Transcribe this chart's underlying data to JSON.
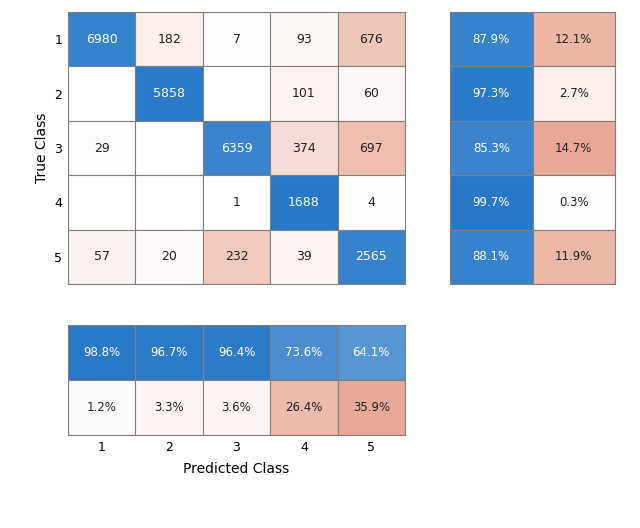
{
  "main_matrix": [
    [
      6980,
      182,
      7,
      93,
      676
    ],
    [
      0,
      5858,
      0,
      101,
      60
    ],
    [
      29,
      0,
      6359,
      374,
      697
    ],
    [
      0,
      0,
      1,
      1688,
      4
    ],
    [
      57,
      20,
      232,
      39,
      2565
    ]
  ],
  "main_labels": [
    [
      "6980",
      "182",
      "7",
      "93",
      "676"
    ],
    [
      "",
      "5858",
      "",
      "101",
      "60"
    ],
    [
      "29",
      "",
      "6359",
      "374",
      "697"
    ],
    [
      "",
      "",
      "1",
      "1688",
      "4"
    ],
    [
      "57",
      "20",
      "232",
      "39",
      "2565"
    ]
  ],
  "right_matrix_labels": [
    [
      "87.9%",
      "12.1%"
    ],
    [
      "97.3%",
      "2.7%"
    ],
    [
      "85.3%",
      "14.7%"
    ],
    [
      "99.7%",
      "0.3%"
    ],
    [
      "88.1%",
      "11.9%"
    ]
  ],
  "bottom_matrix_labels": [
    [
      "98.8%",
      "96.7%",
      "96.4%",
      "73.6%",
      "64.1%"
    ],
    [
      "1.2%",
      "3.3%",
      "3.6%",
      "26.4%",
      "35.9%"
    ]
  ],
  "true_class_labels": [
    "1",
    "2",
    "3",
    "4",
    "5"
  ],
  "predicted_class_labels": [
    "1",
    "2",
    "3",
    "4",
    "5"
  ],
  "xlabel": "Predicted Class",
  "ylabel": "True Class",
  "figsize": [
    6.4,
    5.28
  ],
  "dpi": 100,
  "color_blue_strong": "#2878C8",
  "color_blue_mid": "#5A9FD4",
  "color_blue_light": "#A8CBE8",
  "color_pink_light": "#F0D8D0",
  "color_pink_med": "#E8A898",
  "color_white": "#FFFFFF",
  "color_border": "#808080",
  "text_white": "#FFFFFF",
  "text_dark": "#222222",
  "font_size_main": 9,
  "font_size_pct": 8.5,
  "font_size_axis": 9,
  "font_size_label": 10
}
